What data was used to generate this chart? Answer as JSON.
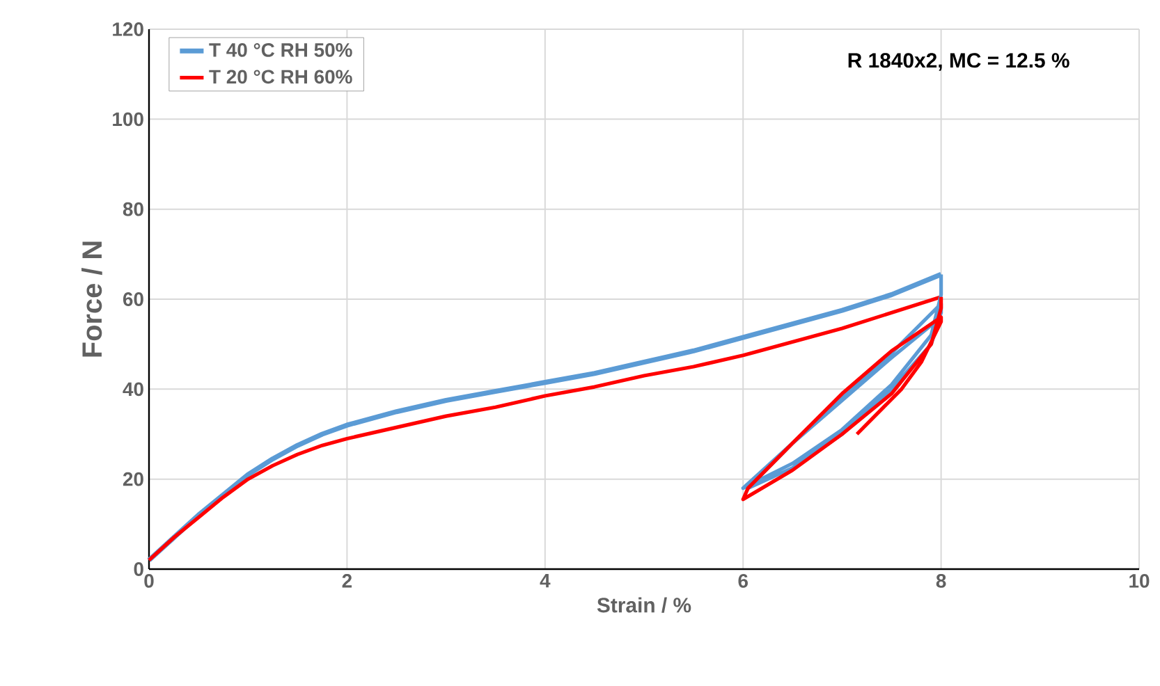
{
  "chart_data": {
    "type": "line",
    "xlabel": "Strain / %",
    "ylabel": "Force / N",
    "annotations": [
      "R 1840x2, MC = 12.5 %"
    ],
    "xlim": [
      0,
      10
    ],
    "ylim": [
      0,
      120
    ],
    "xticks": [
      0,
      2,
      4,
      6,
      8,
      10
    ],
    "yticks": [
      0,
      20,
      40,
      60,
      80,
      100,
      120
    ],
    "grid": true,
    "legend": "top left",
    "marker": "none",
    "line_style": "solid",
    "series": [
      {
        "name": "T 40 °C   RH 50%",
        "color": "#5b9bd5",
        "x": [
          0,
          0.25,
          0.5,
          0.75,
          1,
          1.25,
          1.5,
          1.75,
          2,
          2.5,
          3,
          3.5,
          4,
          4.5,
          5,
          5.5,
          6,
          6.5,
          7,
          7.5,
          8
        ],
        "values": [
          2,
          7,
          12,
          16.5,
          21,
          24.5,
          27.5,
          30,
          32,
          35,
          37.5,
          39.5,
          41.5,
          43.5,
          46,
          48.5,
          51.5,
          54.5,
          57.5,
          61,
          65.5
        ]
      },
      {
        "name": "T 20 °C   RH 60%",
        "color": "#ff0000",
        "x": [
          0,
          0.25,
          0.5,
          0.75,
          1,
          1.25,
          1.5,
          1.75,
          2,
          2.5,
          3,
          3.5,
          4,
          4.5,
          5,
          5.5,
          6,
          6.5,
          7,
          7.5,
          8
        ],
        "values": [
          2,
          7,
          11.5,
          16,
          20,
          23,
          25.5,
          27.5,
          29,
          31.5,
          34,
          36,
          38.5,
          40.5,
          43,
          45,
          47.5,
          50.5,
          53.5,
          57,
          60.5
        ]
      },
      {
        "color": "#5b9bd5",
        "x": [
          8,
          8,
          7.9,
          7.5,
          7,
          6.5,
          6,
          6.5,
          7,
          7.5,
          8,
          8,
          7.9,
          7.5,
          7,
          6.5,
          6.05,
          6.5,
          7,
          7.5,
          8
        ],
        "values": [
          65.5,
          61,
          52,
          41,
          31,
          23.5,
          18,
          28,
          38,
          48,
          59,
          57,
          50,
          40,
          30,
          22.5,
          18,
          28,
          37.5,
          47,
          56
        ]
      },
      {
        "color": "#ff0000",
        "x": [
          8,
          8,
          7.9,
          7.5,
          7,
          6.5,
          6,
          6.05,
          6.5,
          7,
          7.5,
          8,
          8,
          7.8,
          7.6,
          7.15
        ],
        "values": [
          60.5,
          58,
          50,
          39,
          30,
          22,
          15.5,
          18,
          28,
          39,
          48.5,
          56,
          55,
          46,
          40,
          30
        ]
      }
    ]
  }
}
